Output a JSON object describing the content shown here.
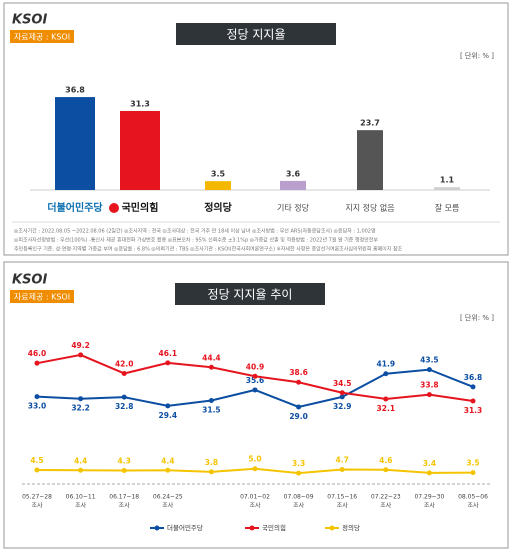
{
  "chart_data": [
    {
      "type": "bar",
      "logo": "KSOI",
      "source": "자료제공 : KSOI",
      "title": "정당 지지율",
      "unit": "[ 단위: % ]",
      "categories": [
        "더불어민주당",
        "국민의힘",
        "정의당",
        "기타 정당",
        "지지 정당 없음",
        "잘 모름"
      ],
      "values": [
        36.8,
        31.3,
        3.5,
        3.6,
        23.7,
        1.1
      ],
      "colors": [
        "#0b4ea2",
        "#e5141e",
        "#f5b800",
        "#b9a0cc",
        "#555555",
        "#cfcfcf"
      ],
      "ylim": [
        0,
        40
      ],
      "notes": [
        "◎조사기간 : 2022.08.05 ~2022.08.06 (2일간)  ◎조사지역 : 전국  ◎조사대상 : 전국 거주 만 18세 이상 남녀  ◎조사방법 : 무선 ARS(자동응답조사)  ◎응답자 : 1,002명",
        "◎피조사자선정방법 : 무선(100%) -통신사 제공 휴대전화 가상번호 활용  ◎표본오차 : 95% 신뢰수준 ±3.1%p  ◎가중값 산출 및 적용방법 : 2022년 7월 말 기준 행정안전부",
        "주민등록인구 기준, 성·연령·지역별 가중값 부여  ◎응답률 : 6.8%  ◎의뢰기관 : TBS  ◎조사기관 : KSOI(한국사회여론연구소)  ※자세한 사항은 중앙선거여론조사심의위원회 홈페이지 참조"
      ]
    },
    {
      "type": "line",
      "logo": "KSOI",
      "source": "자료제공 : KSOI",
      "title": "정당 지지율 추이",
      "unit": "[ 단위: % ]",
      "categories": [
        "05.27~28",
        "06.10~11",
        "06.17~18",
        "06.24~25",
        null,
        "07.01~02",
        "07.08~09",
        "07.15~16",
        "07.22~23",
        "07.29~30",
        "08.05~06"
      ],
      "category_suffix": "조사",
      "ylim": [
        0,
        55
      ],
      "series": [
        {
          "name": "더불어민주당",
          "color": "#0b4ea2",
          "values": [
            33.0,
            32.2,
            32.8,
            29.4,
            31.5,
            35.6,
            29.0,
            32.9,
            41.9,
            43.5,
            36.8
          ],
          "value_labels": [
            "33.0",
            "32.2",
            "32.8",
            "29.4",
            "31.5",
            "35.6",
            "29.0",
            "32.9",
            "41.9",
            "43.5",
            "36.8"
          ]
        },
        {
          "name": "국민의힘",
          "color": "#e5141e",
          "values": [
            46.0,
            49.2,
            42.0,
            46.1,
            44.4,
            40.9,
            38.6,
            34.5,
            32.1,
            33.8,
            31.3
          ],
          "value_labels": [
            "46.0",
            "49.2",
            "42.0",
            "46.1",
            "44.4",
            "40.9",
            "38.6",
            "34.5",
            "32.1",
            "33.8",
            "31.3"
          ]
        },
        {
          "name": "정의당",
          "color": "#f5c400",
          "values": [
            4.5,
            4.4,
            4.3,
            4.4,
            3.8,
            5.0,
            3.3,
            4.7,
            4.6,
            3.4,
            3.5
          ],
          "value_labels": [
            "4.5",
            "4.4",
            "4.3",
            "4.4",
            "3.8",
            "5.0",
            "3.3",
            "4.7",
            "4.6",
            "3.4",
            "3.5"
          ]
        }
      ]
    }
  ]
}
